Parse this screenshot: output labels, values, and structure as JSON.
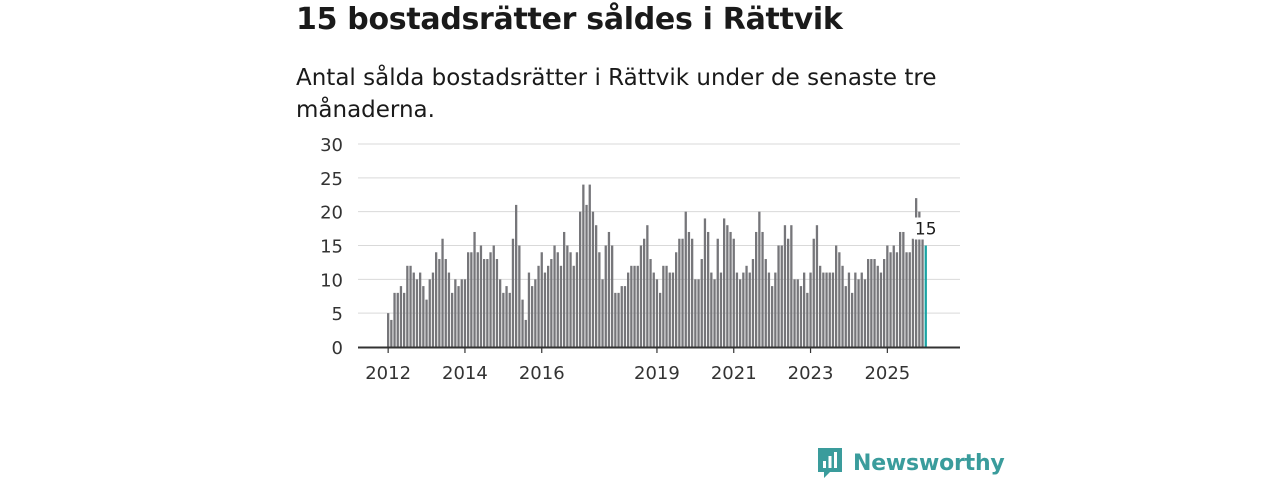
{
  "title": "15 bostadsrätter såldes i Rättvik",
  "subtitle": "Antal sålda bostadsrätter i Rättvik under de senaste tre månaderna.",
  "brand": {
    "name": "Newsworthy",
    "icon": "newsworthy-logo-icon",
    "color": "#3a9c9c"
  },
  "colors": {
    "bar": "#76767a",
    "highlight": "#1aa3a3",
    "grid": "#d9d9d9",
    "axis": "#333333"
  },
  "chart_data": {
    "type": "bar",
    "title": "15 bostadsrätter såldes i Rättvik",
    "xlabel": "",
    "ylabel": "",
    "ylim": [
      0,
      30
    ],
    "yticks": [
      0,
      5,
      10,
      15,
      20,
      25,
      30
    ],
    "xticks": [
      {
        "label": "2012",
        "index": 0
      },
      {
        "label": "2014",
        "index": 24
      },
      {
        "label": "2016",
        "index": 48
      },
      {
        "label": "2019",
        "index": 84
      },
      {
        "label": "2021",
        "index": 108
      },
      {
        "label": "2023",
        "index": 132
      },
      {
        "label": "2025",
        "index": 156
      }
    ],
    "period": "rolling 3-month totals, monthly, 2012 – 2025",
    "values": [
      5,
      4,
      8,
      8,
      9,
      8,
      12,
      12,
      11,
      10,
      11,
      9,
      7,
      10,
      11,
      14,
      13,
      16,
      13,
      11,
      8,
      10,
      9,
      10,
      10,
      14,
      14,
      17,
      14,
      15,
      13,
      13,
      14,
      15,
      13,
      10,
      8,
      9,
      8,
      16,
      21,
      15,
      7,
      4,
      11,
      9,
      10,
      12,
      14,
      11,
      12,
      13,
      15,
      14,
      12,
      17,
      15,
      14,
      12,
      14,
      20,
      24,
      21,
      24,
      20,
      18,
      14,
      10,
      15,
      17,
      15,
      8,
      8,
      9,
      9,
      11,
      12,
      12,
      12,
      15,
      16,
      18,
      13,
      11,
      10,
      8,
      12,
      12,
      11,
      11,
      14,
      16,
      16,
      20,
      17,
      16,
      10,
      10,
      13,
      19,
      17,
      11,
      10,
      16,
      11,
      19,
      18,
      17,
      16,
      11,
      10,
      11,
      12,
      11,
      13,
      17,
      20,
      17,
      13,
      11,
      9,
      11,
      15,
      15,
      18,
      16,
      18,
      10,
      10,
      9,
      11,
      8,
      11,
      16,
      18,
      12,
      11,
      11,
      11,
      11,
      15,
      14,
      12,
      9,
      11,
      8,
      11,
      10,
      11,
      10,
      13,
      13,
      13,
      12,
      11,
      13,
      15,
      14,
      15,
      14,
      17,
      17,
      14,
      14,
      16,
      22,
      20,
      16,
      15
    ],
    "highlight_index": 168,
    "annotations": [
      {
        "index": 168,
        "text": "15"
      }
    ]
  }
}
